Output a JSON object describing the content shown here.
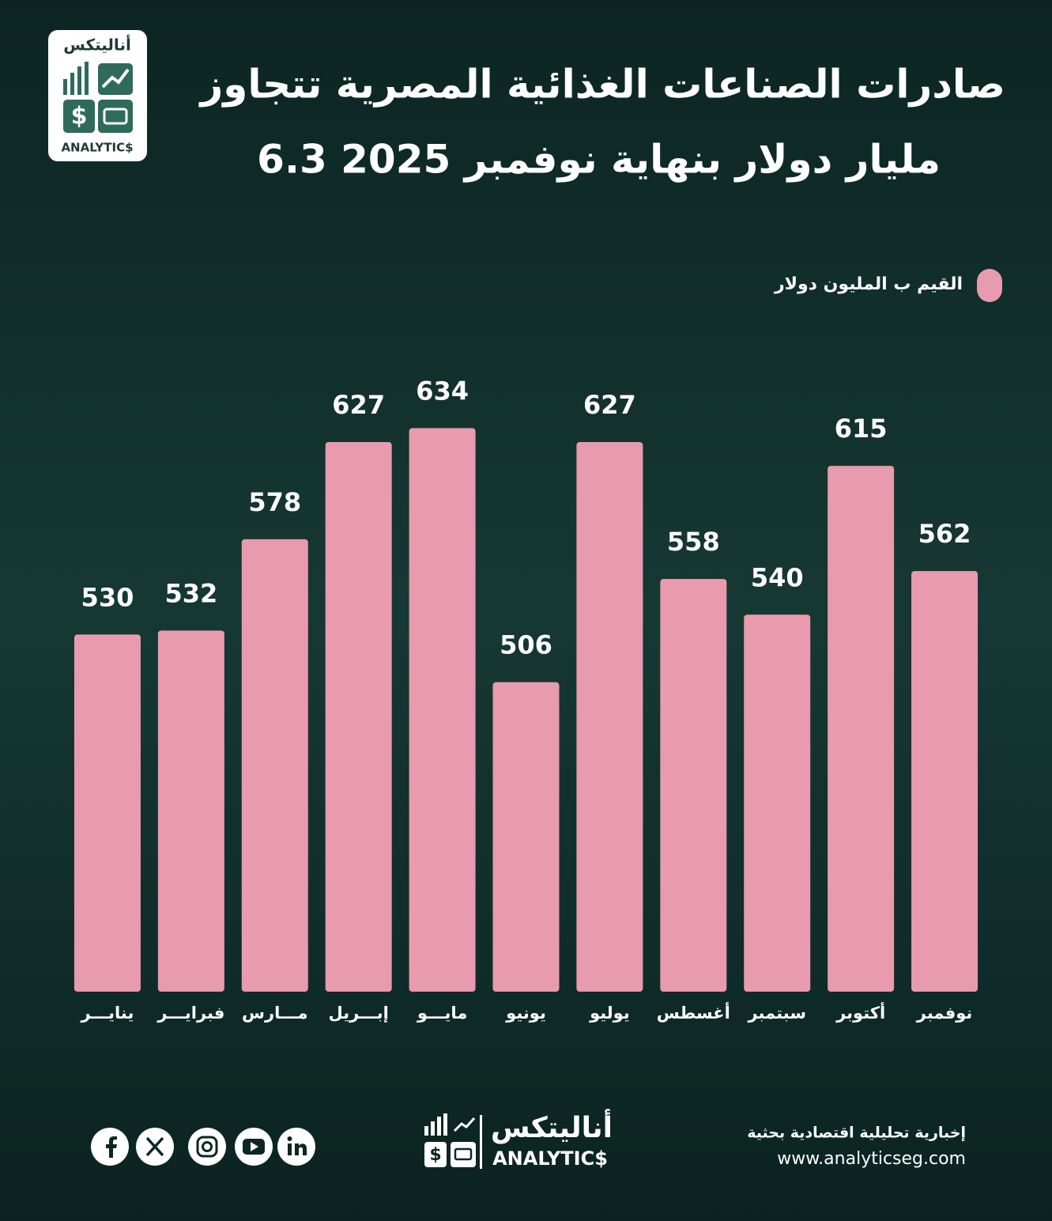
{
  "brand": {
    "name_ar": "أناليتكس",
    "name_en": "ANALYTIC$"
  },
  "chart_data": {
    "type": "bar",
    "title": "صادرات الصناعات الغذائية المصرية تتجاوز",
    "subtitle": "6.3 مليار دولار بنهاية نوفمبر 2025",
    "categories": [
      "ينايـــر",
      "فبرايـــر",
      "مـــارس",
      "إبـــريل",
      "مايـــو",
      "يونيو",
      "يوليو",
      "أغسطس",
      "سبتمبر",
      "أكتوبر",
      "نوفمبر"
    ],
    "series": [
      {
        "name": "القيم ب المليون دولار",
        "color": "#e89aae",
        "values": [
          530,
          532,
          578,
          627,
          634,
          506,
          627,
          558,
          540,
          615,
          562
        ]
      }
    ],
    "ylim": [
      350,
      680
    ],
    "legend": "top-right"
  },
  "footer": {
    "tagline": "إخبارية تحليلية اقتصادية بحثية",
    "url": "www.analyticseg.com"
  }
}
